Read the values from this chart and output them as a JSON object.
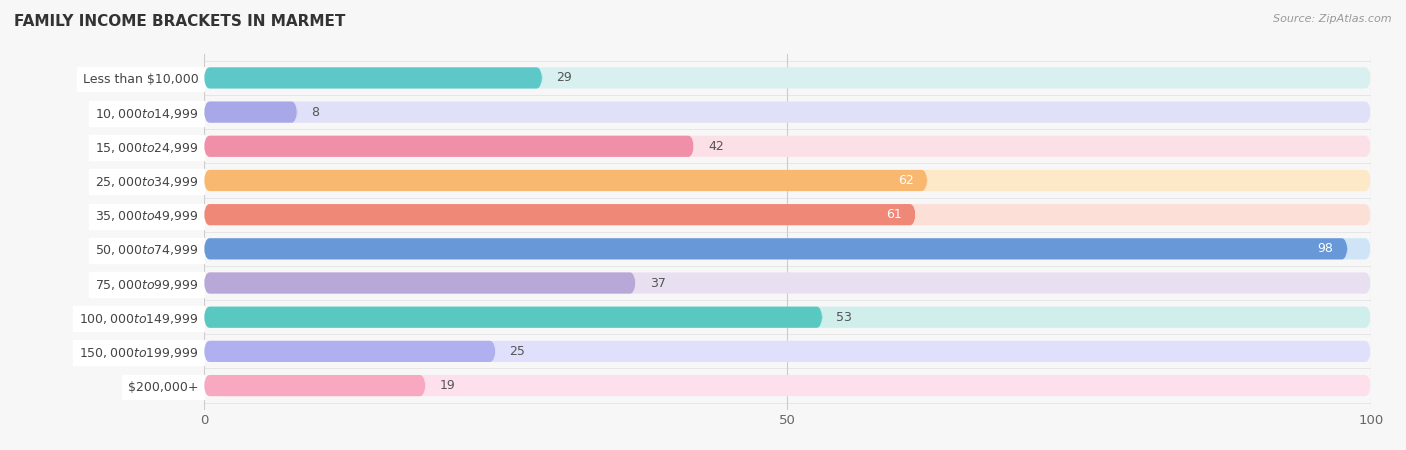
{
  "title": "FAMILY INCOME BRACKETS IN MARMET",
  "source": "Source: ZipAtlas.com",
  "categories": [
    "Less than $10,000",
    "$10,000 to $14,999",
    "$15,000 to $24,999",
    "$25,000 to $34,999",
    "$35,000 to $49,999",
    "$50,000 to $74,999",
    "$75,000 to $99,999",
    "$100,000 to $149,999",
    "$150,000 to $199,999",
    "$200,000+"
  ],
  "values": [
    29,
    8,
    42,
    62,
    61,
    98,
    37,
    53,
    25,
    19
  ],
  "bar_colors": [
    "#5ec8c8",
    "#a8a8e8",
    "#f090a8",
    "#f8b870",
    "#f08878",
    "#6898d8",
    "#b8a8d8",
    "#58c8c0",
    "#b0b0f0",
    "#f8a8c0"
  ],
  "bar_bg_colors": [
    "#d8f0f0",
    "#e0e0f8",
    "#fce0e8",
    "#fde8c8",
    "#fce0d8",
    "#d0e4f8",
    "#e8e0f0",
    "#d0eeec",
    "#e0e0fc",
    "#fde0ec"
  ],
  "xlim": [
    0,
    100
  ],
  "xticks": [
    0,
    50,
    100
  ],
  "background_color": "#f7f7f7",
  "title_fontsize": 11,
  "label_fontsize": 9,
  "value_fontsize": 9
}
